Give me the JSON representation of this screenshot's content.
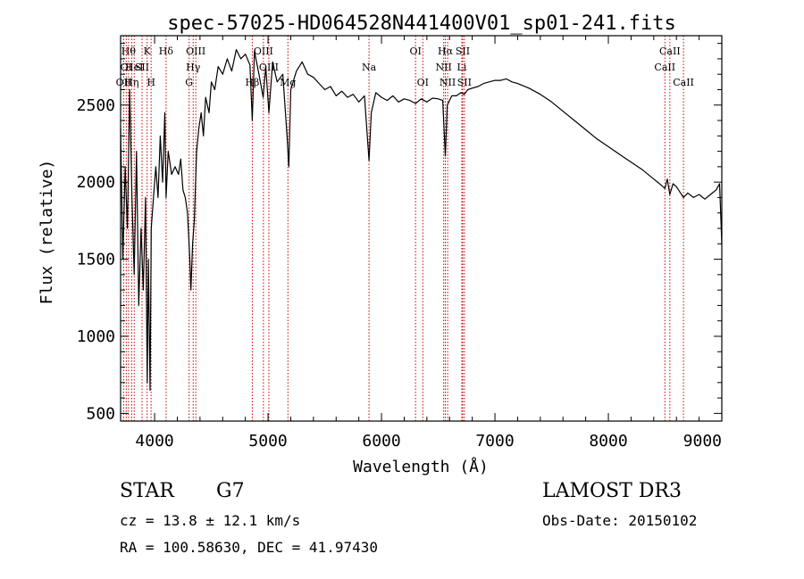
{
  "chart_data": {
    "type": "line",
    "title": "spec-57025-HD064528N441400V01_sp01-241.fits",
    "xlabel": "Wavelength (Å)",
    "ylabel": "Flux (relative)",
    "xlim": [
      3700,
      9000
    ],
    "ylim": [
      450,
      2950
    ],
    "x_ticks": [
      4000,
      5000,
      6000,
      7000,
      8000,
      9000
    ],
    "x_tick_labels": [
      "4000",
      "5000",
      "6000",
      "7000",
      "8000",
      "9000"
    ],
    "y_ticks": [
      500,
      1000,
      1500,
      2000,
      2500
    ],
    "y_tick_labels": [
      "500",
      "1000",
      "1500",
      "2000",
      "2500"
    ],
    "line_color": "#000000",
    "marker_line_color": "#cc0000",
    "series": [
      {
        "name": "flux",
        "points": [
          [
            3700,
            2350
          ],
          [
            3720,
            1500
          ],
          [
            3740,
            2100
          ],
          [
            3760,
            1700
          ],
          [
            3780,
            2600
          ],
          [
            3800,
            1900
          ],
          [
            3820,
            1400
          ],
          [
            3840,
            2200
          ],
          [
            3860,
            1200
          ],
          [
            3880,
            1700
          ],
          [
            3900,
            1300
          ],
          [
            3920,
            1900
          ],
          [
            3935,
            700
          ],
          [
            3945,
            1500
          ],
          [
            3960,
            650
          ],
          [
            3970,
            1700
          ],
          [
            3990,
            1900
          ],
          [
            4010,
            2100
          ],
          [
            4030,
            1900
          ],
          [
            4050,
            2300
          ],
          [
            4070,
            2000
          ],
          [
            4090,
            2450
          ],
          [
            4101,
            1900
          ],
          [
            4120,
            2200
          ],
          [
            4150,
            2050
          ],
          [
            4180,
            2100
          ],
          [
            4210,
            2050
          ],
          [
            4230,
            2150
          ],
          [
            4250,
            1950
          ],
          [
            4270,
            1900
          ],
          [
            4290,
            1800
          ],
          [
            4310,
            1500
          ],
          [
            4320,
            1300
          ],
          [
            4335,
            1600
          ],
          [
            4350,
            1750
          ],
          [
            4370,
            2200
          ],
          [
            4390,
            2350
          ],
          [
            4410,
            2450
          ],
          [
            4430,
            2300
          ],
          [
            4450,
            2550
          ],
          [
            4480,
            2450
          ],
          [
            4500,
            2650
          ],
          [
            4530,
            2600
          ],
          [
            4560,
            2750
          ],
          [
            4600,
            2700
          ],
          [
            4640,
            2800
          ],
          [
            4680,
            2720
          ],
          [
            4720,
            2860
          ],
          [
            4760,
            2800
          ],
          [
            4800,
            2830
          ],
          [
            4840,
            2760
          ],
          [
            4861,
            2400
          ],
          [
            4880,
            2850
          ],
          [
            4920,
            2700
          ],
          [
            4957,
            2550
          ],
          [
            4980,
            2750
          ],
          [
            5007,
            2450
          ],
          [
            5040,
            2780
          ],
          [
            5080,
            2650
          ],
          [
            5130,
            2700
          ],
          [
            5167,
            2300
          ],
          [
            5183,
            2100
          ],
          [
            5200,
            2600
          ],
          [
            5250,
            2720
          ],
          [
            5300,
            2780
          ],
          [
            5350,
            2700
          ],
          [
            5400,
            2680
          ],
          [
            5450,
            2640
          ],
          [
            5500,
            2600
          ],
          [
            5550,
            2620
          ],
          [
            5600,
            2560
          ],
          [
            5650,
            2590
          ],
          [
            5700,
            2550
          ],
          [
            5750,
            2570
          ],
          [
            5800,
            2520
          ],
          [
            5850,
            2560
          ],
          [
            5890,
            2140
          ],
          [
            5910,
            2450
          ],
          [
            5950,
            2580
          ],
          [
            6000,
            2550
          ],
          [
            6050,
            2530
          ],
          [
            6100,
            2560
          ],
          [
            6150,
            2520
          ],
          [
            6200,
            2540
          ],
          [
            6250,
            2530
          ],
          [
            6300,
            2510
          ],
          [
            6350,
            2540
          ],
          [
            6400,
            2520
          ],
          [
            6450,
            2545
          ],
          [
            6500,
            2540
          ],
          [
            6540,
            2530
          ],
          [
            6563,
            2170
          ],
          [
            6580,
            2500
          ],
          [
            6620,
            2560
          ],
          [
            6660,
            2560
          ],
          [
            6700,
            2580
          ],
          [
            6730,
            2570
          ],
          [
            6760,
            2600
          ],
          [
            6800,
            2610
          ],
          [
            6850,
            2620
          ],
          [
            6900,
            2640
          ],
          [
            6950,
            2650
          ],
          [
            7000,
            2660
          ],
          [
            7050,
            2660
          ],
          [
            7100,
            2670
          ],
          [
            7150,
            2650
          ],
          [
            7200,
            2640
          ],
          [
            7300,
            2610
          ],
          [
            7400,
            2570
          ],
          [
            7500,
            2520
          ],
          [
            7600,
            2460
          ],
          [
            7700,
            2400
          ],
          [
            7800,
            2340
          ],
          [
            7900,
            2280
          ],
          [
            8000,
            2230
          ],
          [
            8100,
            2180
          ],
          [
            8200,
            2130
          ],
          [
            8300,
            2080
          ],
          [
            8400,
            2020
          ],
          [
            8450,
            1990
          ],
          [
            8498,
            1960
          ],
          [
            8520,
            2020
          ],
          [
            8542,
            1920
          ],
          [
            8570,
            1990
          ],
          [
            8600,
            1970
          ],
          [
            8662,
            1900
          ],
          [
            8700,
            1930
          ],
          [
            8750,
            1900
          ],
          [
            8800,
            1920
          ],
          [
            8850,
            1890
          ],
          [
            8900,
            1920
          ],
          [
            8950,
            1950
          ],
          [
            8980,
            1990
          ],
          [
            9000,
            1600
          ]
        ]
      }
    ],
    "line_markers": [
      {
        "wavelength": 3727,
        "label": "OII",
        "row": 2
      },
      {
        "wavelength": 3750,
        "label": "OI",
        "row": 1
      },
      {
        "wavelength": 3770,
        "label": "Hθ",
        "row": 0
      },
      {
        "wavelength": 3798,
        "label": "Hη",
        "row": 2
      },
      {
        "wavelength": 3820,
        "label": "HeI",
        "row": 1
      },
      {
        "wavelength": 3889,
        "label": "SII",
        "row": 1
      },
      {
        "wavelength": 3934,
        "label": "K",
        "row": 0
      },
      {
        "wavelength": 3969,
        "label": "H",
        "row": 2
      },
      {
        "wavelength": 4101,
        "label": "Hδ",
        "row": 0
      },
      {
        "wavelength": 4304,
        "label": "G",
        "row": 2
      },
      {
        "wavelength": 4340,
        "label": "Hγ",
        "row": 1
      },
      {
        "wavelength": 4363,
        "label": "OIII",
        "row": 0
      },
      {
        "wavelength": 4861,
        "label": "Hβ",
        "row": 2
      },
      {
        "wavelength": 4959,
        "label": "OIII",
        "row": 0
      },
      {
        "wavelength": 5007,
        "label": "OIII",
        "row": 1
      },
      {
        "wavelength": 5175,
        "label": "Mg",
        "row": 2
      },
      {
        "wavelength": 5890,
        "label": "Na",
        "row": 1
      },
      {
        "wavelength": 6300,
        "label": "OI",
        "row": 0
      },
      {
        "wavelength": 6364,
        "label": "OI",
        "row": 2
      },
      {
        "wavelength": 6548,
        "label": "NII",
        "row": 1
      },
      {
        "wavelength": 6563,
        "label": "Hα",
        "row": 0
      },
      {
        "wavelength": 6583,
        "label": "NII",
        "row": 2
      },
      {
        "wavelength": 6708,
        "label": "Li",
        "row": 1
      },
      {
        "wavelength": 6716,
        "label": "SII",
        "row": 0
      },
      {
        "wavelength": 6731,
        "label": "SII",
        "row": 2
      },
      {
        "wavelength": 8498,
        "label": "CaII",
        "row": 1
      },
      {
        "wavelength": 8542,
        "label": "CaII",
        "row": 0
      },
      {
        "wavelength": 8662,
        "label": "CaII",
        "row": 2
      }
    ]
  },
  "info": {
    "object_class": "STAR",
    "subclass": "G7",
    "survey": "LAMOST DR3",
    "cz": "cz = 13.8 ± 12.1 km/s",
    "obs_date": "Obs-Date: 20150102",
    "coords": "RA = 100.58630, DEC =  41.97430"
  }
}
